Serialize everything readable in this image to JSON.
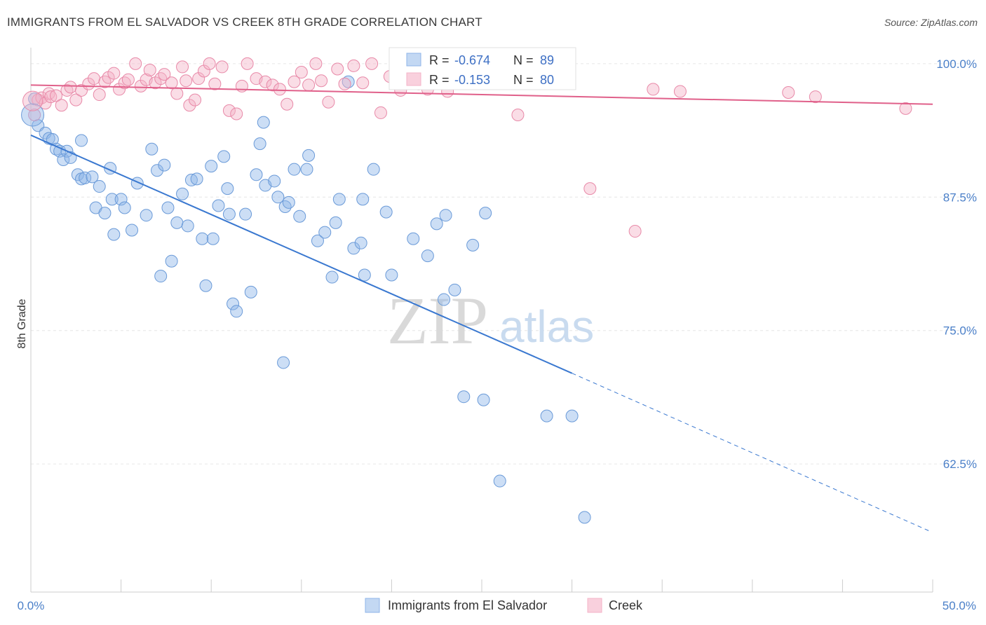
{
  "title": "IMMIGRANTS FROM EL SALVADOR VS CREEK 8TH GRADE CORRELATION CHART",
  "source": "Source: ZipAtlas.com",
  "watermark": {
    "zip": "ZIP",
    "atlas": "atlas"
  },
  "chart_data": {
    "type": "scatter",
    "xlabel": "",
    "ylabel": "8th Grade",
    "xlim": [
      0,
      50
    ],
    "ylim": [
      50.5,
      101.5
    ],
    "x_tick_labels": [
      "0.0%",
      "50.0%"
    ],
    "y_ticks": [
      {
        "value": 100,
        "label": "100.0%"
      },
      {
        "value": 87.5,
        "label": "87.5%"
      },
      {
        "value": 75,
        "label": "75.0%"
      },
      {
        "value": 62.5,
        "label": "62.5%"
      }
    ],
    "grid": true,
    "legend_stats": [
      {
        "r_label": "R =",
        "r_value": "-0.674",
        "n_label": "N =",
        "n_value": "89"
      },
      {
        "r_label": "R =",
        "r_value": "-0.153",
        "n_label": "N =",
        "n_value": "80"
      }
    ],
    "series": [
      {
        "name": "Immigrants from El Salvador",
        "color": "#8fb5e8",
        "stroke": "#6a9ad8",
        "trend": {
          "x0": 0,
          "y0": 93.3,
          "x1": 30,
          "y1": 71.0,
          "dash_to_x": 50,
          "dash_to_y": 56.2,
          "color": "#3a78d0"
        },
        "points": [
          [
            0.2,
            96.7
          ],
          [
            0.4,
            94.2
          ],
          [
            0.8,
            93.5
          ],
          [
            1.0,
            93.0
          ],
          [
            1.2,
            92.9
          ],
          [
            1.4,
            92.0
          ],
          [
            1.6,
            91.8
          ],
          [
            1.8,
            91.0
          ],
          [
            2.0,
            91.8
          ],
          [
            2.2,
            91.2
          ],
          [
            2.6,
            89.6
          ],
          [
            2.8,
            89.2
          ],
          [
            3.0,
            89.3
          ],
          [
            3.4,
            89.4
          ],
          [
            2.8,
            92.8
          ],
          [
            3.6,
            86.5
          ],
          [
            3.8,
            88.5
          ],
          [
            4.1,
            86.0
          ],
          [
            4.5,
            87.3
          ],
          [
            4.6,
            84.0
          ],
          [
            4.4,
            90.2
          ],
          [
            5.0,
            87.3
          ],
          [
            5.2,
            86.5
          ],
          [
            5.6,
            84.4
          ],
          [
            5.9,
            88.8
          ],
          [
            6.4,
            85.8
          ],
          [
            6.7,
            92.0
          ],
          [
            7.0,
            90.0
          ],
          [
            7.2,
            80.1
          ],
          [
            7.4,
            90.5
          ],
          [
            7.6,
            86.5
          ],
          [
            7.8,
            81.5
          ],
          [
            8.1,
            85.1
          ],
          [
            8.4,
            87.8
          ],
          [
            8.7,
            84.8
          ],
          [
            8.9,
            89.1
          ],
          [
            9.2,
            89.2
          ],
          [
            9.5,
            83.6
          ],
          [
            9.7,
            79.2
          ],
          [
            10.0,
            90.4
          ],
          [
            10.1,
            83.6
          ],
          [
            10.4,
            86.7
          ],
          [
            10.7,
            91.3
          ],
          [
            10.9,
            88.3
          ],
          [
            11.0,
            85.9
          ],
          [
            11.2,
            77.5
          ],
          [
            11.4,
            76.8
          ],
          [
            11.9,
            85.9
          ],
          [
            12.2,
            78.6
          ],
          [
            12.5,
            89.6
          ],
          [
            12.7,
            92.5
          ],
          [
            12.9,
            94.5
          ],
          [
            13.0,
            88.6
          ],
          [
            13.5,
            89.0
          ],
          [
            13.7,
            87.5
          ],
          [
            14.0,
            72.0
          ],
          [
            14.1,
            86.6
          ],
          [
            14.3,
            87.0
          ],
          [
            14.6,
            90.1
          ],
          [
            14.9,
            85.7
          ],
          [
            15.3,
            90.1
          ],
          [
            15.4,
            91.4
          ],
          [
            15.9,
            83.4
          ],
          [
            16.3,
            84.2
          ],
          [
            16.7,
            80.0
          ],
          [
            16.9,
            85.1
          ],
          [
            17.1,
            87.3
          ],
          [
            17.6,
            98.3
          ],
          [
            17.9,
            82.7
          ],
          [
            18.3,
            83.2
          ],
          [
            18.5,
            80.2
          ],
          [
            18.4,
            87.3
          ],
          [
            19.0,
            90.1
          ],
          [
            19.7,
            86.1
          ],
          [
            20.0,
            80.2
          ],
          [
            21.2,
            83.6
          ],
          [
            22.0,
            82.0
          ],
          [
            22.5,
            85.0
          ],
          [
            22.9,
            77.9
          ],
          [
            23.0,
            85.8
          ],
          [
            23.5,
            78.8
          ],
          [
            24.0,
            68.8
          ],
          [
            24.5,
            83.0
          ],
          [
            25.1,
            68.5
          ],
          [
            25.2,
            86.0
          ],
          [
            26.0,
            60.9
          ],
          [
            28.6,
            67.0
          ],
          [
            30.0,
            67.0
          ],
          [
            30.7,
            57.5
          ]
        ]
      },
      {
        "name": "Creek",
        "color": "#f4b3c8",
        "stroke": "#e889a8",
        "trend": {
          "x0": 0,
          "y0": 98.0,
          "x1": 50,
          "y1": 96.2,
          "color": "#e0608a"
        },
        "points": [
          [
            0.2,
            95.2
          ],
          [
            0.4,
            96.6
          ],
          [
            0.6,
            96.8
          ],
          [
            0.8,
            96.3
          ],
          [
            1.0,
            97.2
          ],
          [
            1.1,
            96.9
          ],
          [
            1.4,
            97.0
          ],
          [
            1.7,
            96.1
          ],
          [
            2.0,
            97.5
          ],
          [
            2.2,
            97.8
          ],
          [
            2.5,
            96.6
          ],
          [
            2.8,
            97.5
          ],
          [
            3.2,
            98.1
          ],
          [
            3.5,
            98.6
          ],
          [
            3.8,
            97.1
          ],
          [
            4.1,
            98.3
          ],
          [
            4.3,
            98.7
          ],
          [
            4.6,
            99.1
          ],
          [
            4.9,
            97.6
          ],
          [
            5.2,
            98.2
          ],
          [
            5.4,
            98.5
          ],
          [
            5.8,
            100.0
          ],
          [
            6.1,
            97.9
          ],
          [
            6.4,
            98.5
          ],
          [
            6.6,
            99.4
          ],
          [
            6.9,
            98.2
          ],
          [
            7.2,
            98.6
          ],
          [
            7.4,
            99.0
          ],
          [
            7.8,
            98.2
          ],
          [
            8.1,
            97.2
          ],
          [
            8.4,
            99.7
          ],
          [
            8.6,
            98.4
          ],
          [
            8.8,
            96.1
          ],
          [
            9.1,
            96.6
          ],
          [
            9.3,
            98.6
          ],
          [
            9.6,
            99.3
          ],
          [
            9.9,
            100.0
          ],
          [
            10.2,
            98.1
          ],
          [
            10.6,
            99.7
          ],
          [
            11.0,
            95.6
          ],
          [
            11.4,
            95.3
          ],
          [
            11.7,
            97.9
          ],
          [
            12.0,
            100.0
          ],
          [
            12.5,
            98.6
          ],
          [
            13.0,
            98.3
          ],
          [
            13.4,
            98.0
          ],
          [
            13.8,
            97.6
          ],
          [
            14.2,
            96.2
          ],
          [
            14.6,
            98.3
          ],
          [
            15.0,
            99.2
          ],
          [
            15.4,
            98.0
          ],
          [
            15.8,
            100.0
          ],
          [
            16.1,
            98.4
          ],
          [
            16.5,
            96.4
          ],
          [
            17.0,
            99.5
          ],
          [
            17.4,
            98.1
          ],
          [
            17.9,
            99.8
          ],
          [
            18.4,
            98.2
          ],
          [
            18.9,
            100.0
          ],
          [
            19.4,
            95.4
          ],
          [
            19.9,
            98.8
          ],
          [
            20.5,
            97.5
          ],
          [
            21.0,
            99.2
          ],
          [
            21.5,
            98.1
          ],
          [
            22.0,
            97.6
          ],
          [
            22.6,
            99.8
          ],
          [
            23.1,
            97.4
          ],
          [
            23.7,
            100.0
          ],
          [
            24.5,
            99.3
          ],
          [
            25.3,
            100.0
          ],
          [
            26.0,
            99.2
          ],
          [
            27.0,
            95.2
          ],
          [
            29.0,
            99.5
          ],
          [
            31.0,
            88.3
          ],
          [
            33.5,
            84.3
          ],
          [
            34.5,
            97.6
          ],
          [
            36.0,
            97.4
          ],
          [
            42.0,
            97.3
          ],
          [
            43.5,
            96.9
          ],
          [
            48.5,
            95.8
          ]
        ]
      }
    ]
  }
}
